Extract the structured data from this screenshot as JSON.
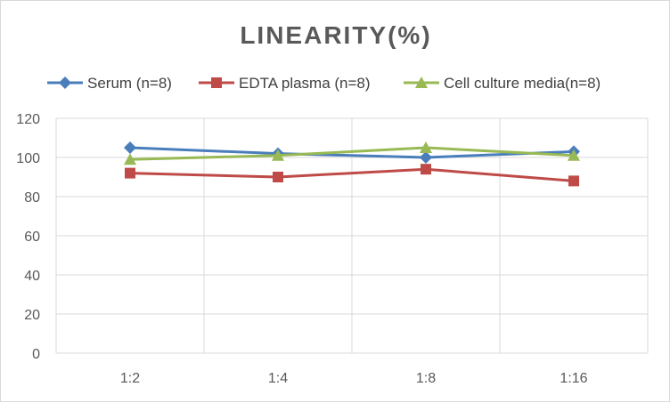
{
  "chart_data": {
    "type": "line",
    "title": "LINEARITY(%)",
    "categories": [
      "1:2",
      "1:4",
      "1:8",
      "1:16"
    ],
    "ylim": [
      0,
      120
    ],
    "yticks": [
      0,
      20,
      40,
      60,
      80,
      100,
      120
    ],
    "grid": true,
    "legend_position": "top",
    "series": [
      {
        "name": "Serum (n=8)",
        "color": "#4a7ebb",
        "marker": "diamond",
        "values": [
          105,
          102,
          100,
          103
        ]
      },
      {
        "name": "EDTA plasma (n=8)",
        "color": "#be4b48",
        "marker": "square",
        "values": [
          92,
          90,
          94,
          88
        ]
      },
      {
        "name": "Cell culture media(n=8)",
        "color": "#98b954",
        "marker": "triangle",
        "values": [
          99,
          101,
          105,
          101
        ]
      }
    ]
  }
}
